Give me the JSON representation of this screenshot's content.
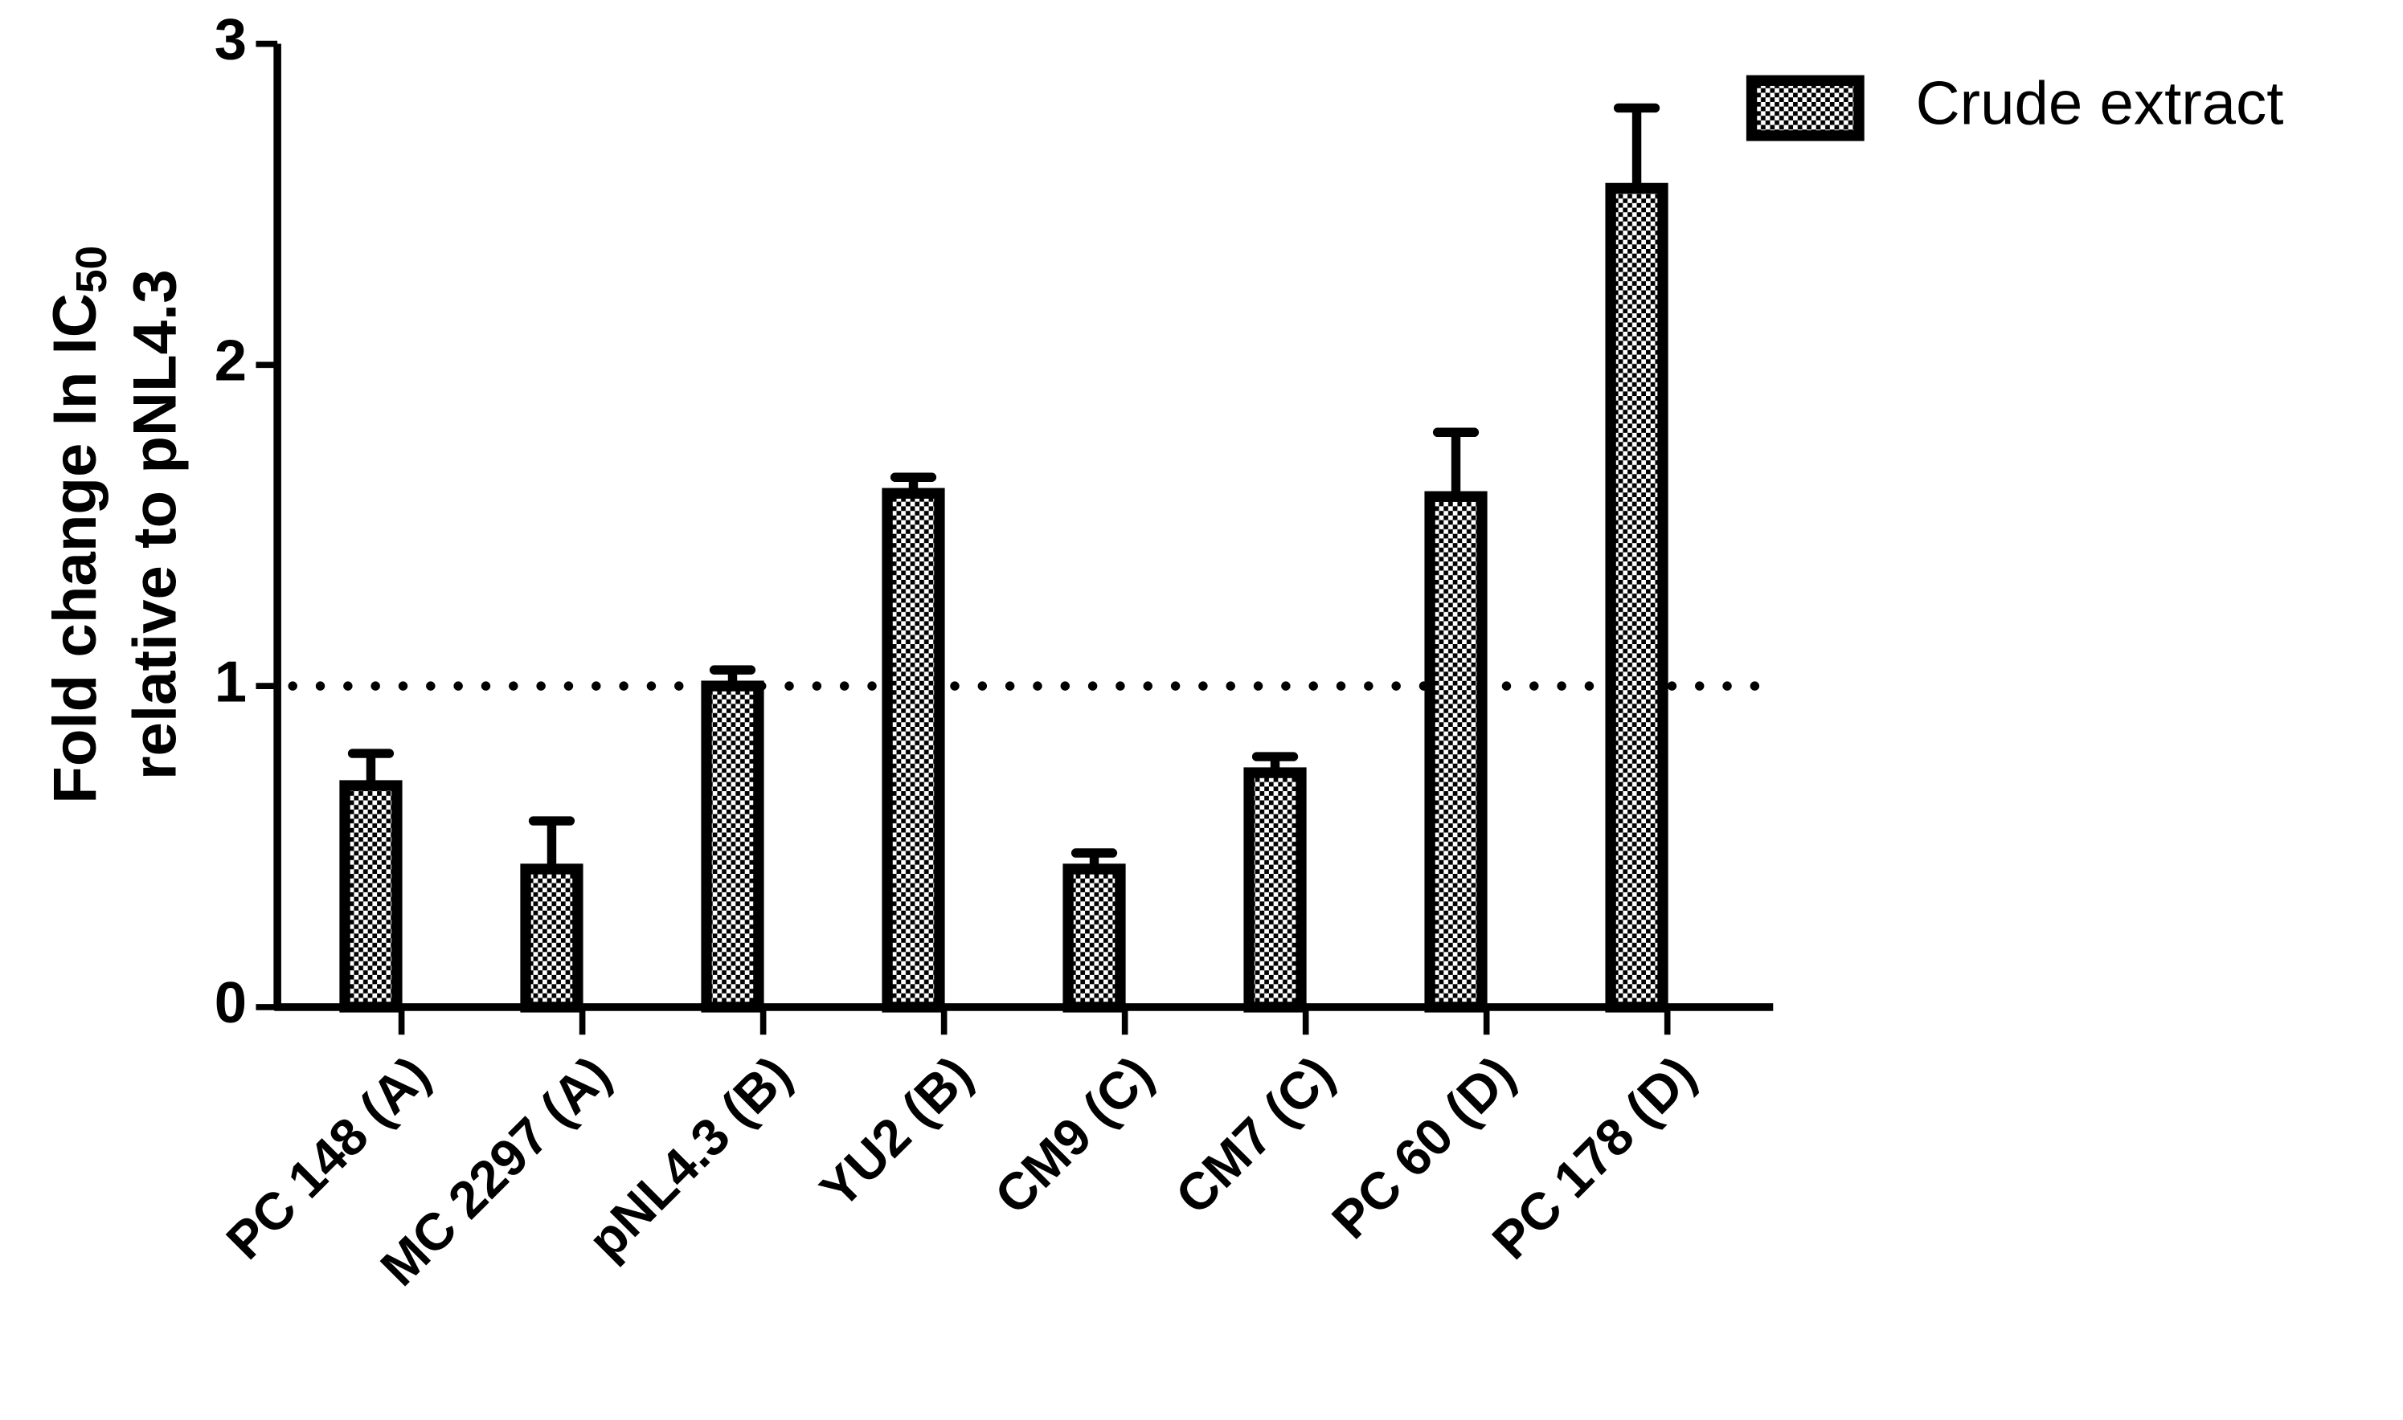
{
  "chart_data": {
    "type": "bar",
    "categories": [
      "PC 148 (A)",
      "MC 2297 (A)",
      "pNL4.3  (B)",
      "YU2 (B)",
      "CM9 (C)",
      "CM7 (C)",
      "PC 60 (D)",
      "PC 178 (D)"
    ],
    "series": [
      {
        "name": "Crude extract",
        "color": "#000000",
        "values": [
          0.69,
          0.43,
          1.0,
          1.6,
          0.43,
          0.73,
          1.59,
          2.55
        ],
        "errors": [
          0.1,
          0.15,
          0.05,
          0.05,
          0.05,
          0.05,
          0.2,
          0.25
        ]
      }
    ],
    "ylabel": {
      "text": "Fold change In IC",
      "subscript": "50",
      "line2": "relative to pNL4.3"
    },
    "ylim": [
      0,
      3
    ],
    "yticks": [
      0,
      1,
      2,
      3
    ],
    "reference_line": 1,
    "legend": "top-right"
  }
}
